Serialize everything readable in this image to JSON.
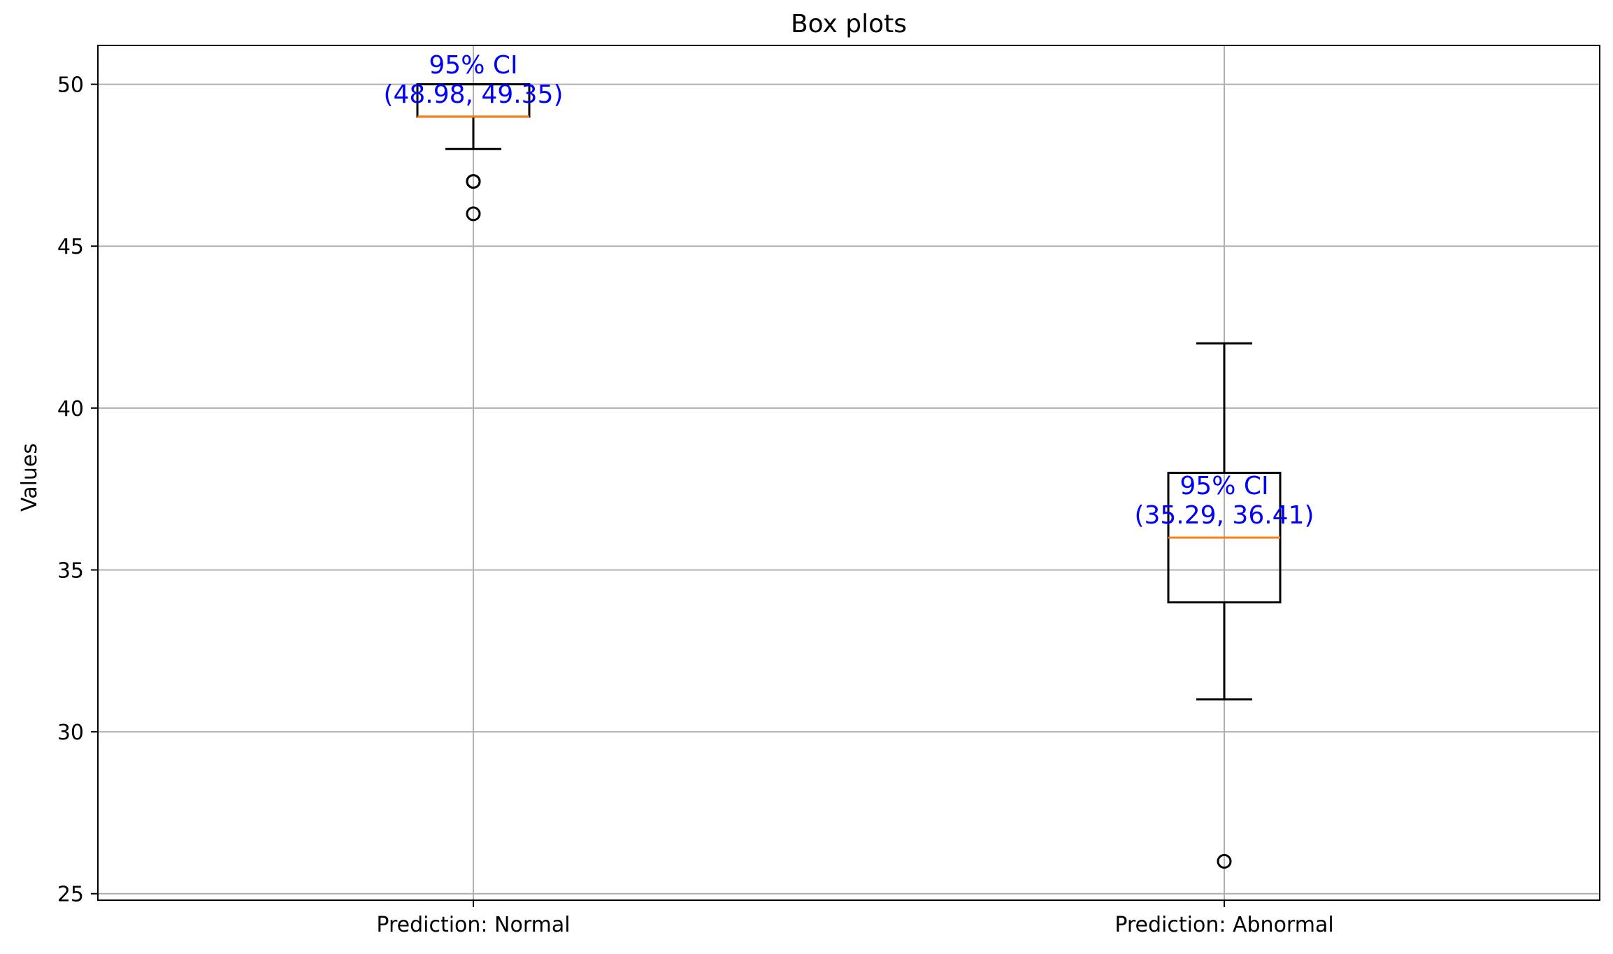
{
  "chart_data": {
    "type": "box",
    "title": "Box plots",
    "xlabel": "",
    "ylabel": "Values",
    "ylim": [
      24.8,
      51.2
    ],
    "yticks": [
      25,
      30,
      35,
      40,
      45,
      50
    ],
    "ytick_labels": [
      "25",
      "30",
      "35",
      "40",
      "45",
      "50"
    ],
    "grid": true,
    "colors": {
      "box": "#000000",
      "median": "#ff7f0e",
      "annotation": "#0000ff",
      "grid": "#b0b0b0"
    },
    "categories": [
      "Prediction: Normal",
      "Prediction: Abnormal"
    ],
    "boxes": [
      {
        "category": "Prediction: Normal",
        "whisker_low": 48,
        "q1": 49,
        "median": 49,
        "q3": 50,
        "whisker_high": 50,
        "outliers": [
          47,
          47,
          46
        ],
        "ci_title": "95% CI",
        "ci_text": "(48.98, 49.35)",
        "ci_low": 48.98,
        "ci_high": 49.35
      },
      {
        "category": "Prediction: Abnormal",
        "whisker_low": 31,
        "q1": 34,
        "median": 36,
        "q3": 38,
        "whisker_high": 42,
        "outliers": [
          26
        ],
        "ci_title": "95% CI",
        "ci_text": "(35.29, 36.41)",
        "ci_low": 35.29,
        "ci_high": 36.41
      }
    ]
  }
}
